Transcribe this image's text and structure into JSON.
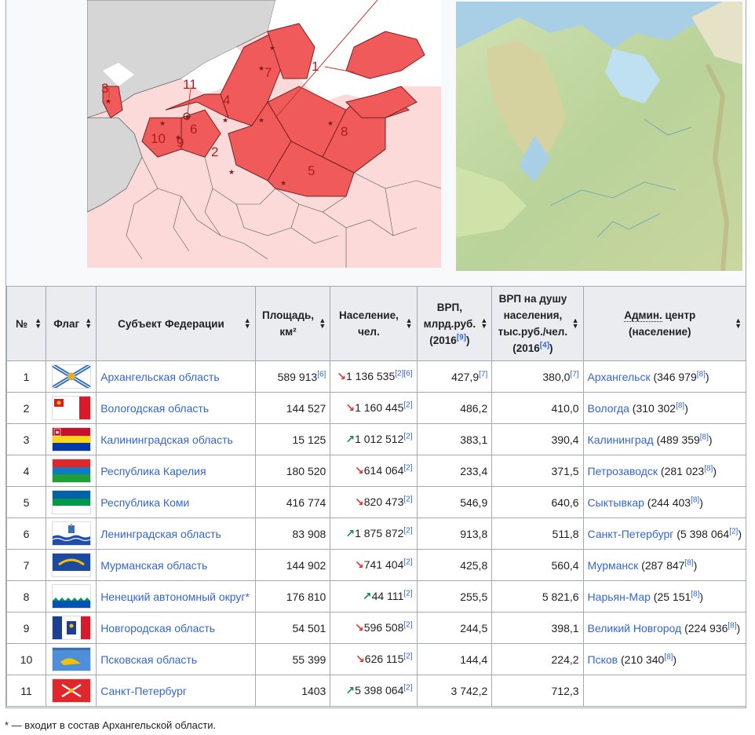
{
  "map_labels": [
    "1",
    "2",
    "3",
    "4",
    "5",
    "6",
    "7",
    "8",
    "9",
    "10",
    "11"
  ],
  "table": {
    "headers": {
      "num": "№",
      "flag": "Флаг",
      "subject": "Субъект Федерации",
      "area_main": "Площадь,",
      "area_unit": "км²",
      "pop_main": "Население,",
      "pop_unit": "чел.",
      "grp_l1": "ВРП,",
      "grp_l2": "млрд.руб.",
      "grp_l3": "(2016",
      "grp_ref": "[9]",
      "grp_close": ")",
      "gpc_l1": "ВРП на душу",
      "gpc_l2": "населения,",
      "gpc_l3": "тыс.руб./чел.",
      "gpc_l4": "(2016",
      "gpc_ref": "[4]",
      "gpc_close": ")",
      "center_abbr": "Админ.",
      "center_rest": " центр",
      "center_l2": "(население)"
    },
    "rows": [
      {
        "num": "1",
        "flag": "arkhangelsk",
        "name": "Архангельская область",
        "area": "589 913",
        "area_ref": "[6]",
        "trend": "down",
        "trend_icon": "↘",
        "pop": "1 136 535",
        "pop_ref": "[2][6]",
        "grp": "427,9",
        "grp_ref": "[7]",
        "gpc": "380,0",
        "gpc_ref": "[7]",
        "center": "Архангельск",
        "center_pop": " (346 979",
        "center_ref": "[8]",
        "center_close": ")"
      },
      {
        "num": "2",
        "flag": "vologda",
        "name": "Вологодская область",
        "area": "144 527",
        "area_ref": "",
        "trend": "down",
        "trend_icon": "↘",
        "pop": "1 160 445",
        "pop_ref": "[2]",
        "grp": "486,2",
        "grp_ref": "",
        "gpc": "410,0",
        "gpc_ref": "",
        "center": "Вологда",
        "center_pop": " (310 302",
        "center_ref": "[8]",
        "center_close": ")"
      },
      {
        "num": "3",
        "flag": "kaliningrad",
        "name": "Калининградская область",
        "area": "15 125",
        "area_ref": "",
        "trend": "up",
        "trend_icon": "↗",
        "pop": "1 012 512",
        "pop_ref": "[2]",
        "grp": "383,1",
        "grp_ref": "",
        "gpc": "390,4",
        "gpc_ref": "",
        "center": "Калининград",
        "center_pop": " (489 359",
        "center_ref": "[8]",
        "center_close": ")"
      },
      {
        "num": "4",
        "flag": "karelia",
        "name": "Республика Карелия",
        "area": "180 520",
        "area_ref": "",
        "trend": "down",
        "trend_icon": "↘",
        "pop": "614 064",
        "pop_ref": "[2]",
        "grp": "233,4",
        "grp_ref": "",
        "gpc": "371,5",
        "gpc_ref": "",
        "center": "Петрозаводск",
        "center_pop": " (281 023",
        "center_ref": "[8]",
        "center_close": ")"
      },
      {
        "num": "5",
        "flag": "komi",
        "name": "Республика Коми",
        "area": "416 774",
        "area_ref": "",
        "trend": "down",
        "trend_icon": "↘",
        "pop": "820 473",
        "pop_ref": "[2]",
        "grp": "546,9",
        "grp_ref": "",
        "gpc": "640,6",
        "gpc_ref": "",
        "center": "Сыктывкар",
        "center_pop": " (244 403",
        "center_ref": "[8]",
        "center_close": ")"
      },
      {
        "num": "6",
        "flag": "leningrad",
        "name": "Ленинградская область",
        "area": "83 908",
        "area_ref": "",
        "trend": "up",
        "trend_icon": "↗",
        "pop": "1 875 872",
        "pop_ref": "[2]",
        "grp": "913,8",
        "grp_ref": "",
        "gpc": "511,8",
        "gpc_ref": "",
        "center": "Санкт-Петербург",
        "center_pop": " (5 398 064",
        "center_ref": "[2]",
        "center_close": ")"
      },
      {
        "num": "7",
        "flag": "murmansk",
        "name": "Мурманская область",
        "area": "144 902",
        "area_ref": "",
        "trend": "down",
        "trend_icon": "↘",
        "pop": "741 404",
        "pop_ref": "[2]",
        "grp": "425,8",
        "grp_ref": "",
        "gpc": "560,4",
        "gpc_ref": "",
        "center": "Мурманск",
        "center_pop": " (287 847",
        "center_ref": "[8]",
        "center_close": ")"
      },
      {
        "num": "8",
        "flag": "nenets",
        "name": "Ненецкий автономный округ*",
        "area": "176 810",
        "area_ref": "",
        "trend": "up",
        "trend_icon": "↗",
        "pop": "44 111",
        "pop_ref": "[2]",
        "grp": "255,5",
        "grp_ref": "",
        "gpc": "5 821,6",
        "gpc_ref": "",
        "center": "Нарьян-Мар",
        "center_pop": " (25 151",
        "center_ref": "[8]",
        "center_close": ")"
      },
      {
        "num": "9",
        "flag": "novgorod",
        "name": "Новгородская область",
        "area": "54 501",
        "area_ref": "",
        "trend": "down",
        "trend_icon": "↘",
        "pop": "596 508",
        "pop_ref": "[2]",
        "grp": "244,5",
        "grp_ref": "",
        "gpc": "398,1",
        "gpc_ref": "",
        "center": "Великий Новгород",
        "center_pop": " (224 936",
        "center_ref": "[8]",
        "center_close": ")"
      },
      {
        "num": "10",
        "flag": "pskov",
        "name": "Псковская область",
        "area": "55 399",
        "area_ref": "",
        "trend": "down",
        "trend_icon": "↘",
        "pop": "626 115",
        "pop_ref": "[2]",
        "grp": "144,4",
        "grp_ref": "",
        "gpc": "224,2",
        "gpc_ref": "",
        "center": "Псков",
        "center_pop": " (210 340",
        "center_ref": "[8]",
        "center_close": ")"
      },
      {
        "num": "11",
        "flag": "spb",
        "name": "Санкт-Петербург",
        "area": "1403",
        "area_ref": "",
        "trend": "up",
        "trend_icon": "↗",
        "pop": "5 398 064",
        "pop_ref": "[2]",
        "grp": "3 742,2",
        "grp_ref": "",
        "gpc": "712,3",
        "gpc_ref": "",
        "center": "",
        "center_pop": "",
        "center_ref": "",
        "center_close": ""
      }
    ]
  },
  "footnote": "* — входит в состав Архангельской области.",
  "colors": {
    "link": "#3366cc",
    "region": "#f05a5a",
    "trend_up": "#14866d",
    "trend_down": "#d33"
  }
}
